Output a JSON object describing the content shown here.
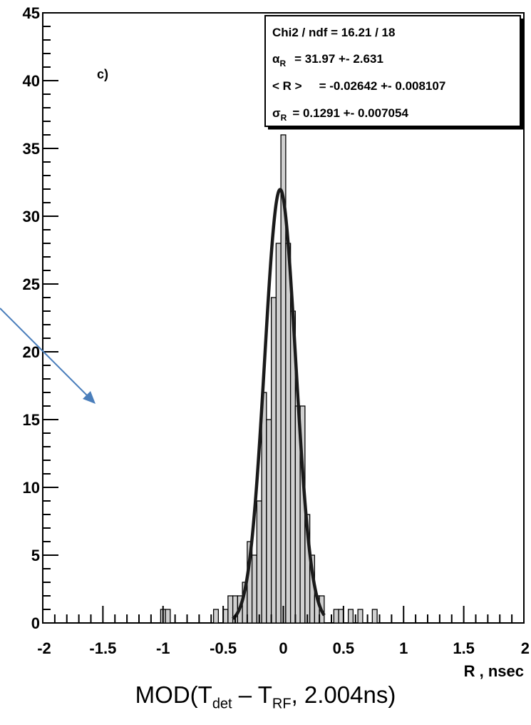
{
  "chart_data": {
    "type": "bar",
    "panel_label": "c)",
    "xlabel": "R , nsec",
    "x_ticks": [
      "-2",
      "-1.5",
      "-1",
      "-0.5",
      "0",
      "0.5",
      "1",
      "1.5",
      "2"
    ],
    "y_ticks": [
      "0",
      "5",
      "10",
      "15",
      "20",
      "25",
      "30",
      "35",
      "40",
      "45"
    ],
    "xlim": [
      -2,
      2
    ],
    "ylim": [
      0,
      45
    ],
    "bin_width": 0.04,
    "bins": [
      {
        "x": -1.0,
        "y": 1
      },
      {
        "x": -0.96,
        "y": 1
      },
      {
        "x": -0.56,
        "y": 1
      },
      {
        "x": -0.48,
        "y": 1
      },
      {
        "x": -0.44,
        "y": 2
      },
      {
        "x": -0.4,
        "y": 2
      },
      {
        "x": -0.36,
        "y": 2
      },
      {
        "x": -0.32,
        "y": 3
      },
      {
        "x": -0.28,
        "y": 6
      },
      {
        "x": -0.24,
        "y": 5
      },
      {
        "x": -0.2,
        "y": 9
      },
      {
        "x": -0.16,
        "y": 17
      },
      {
        "x": -0.12,
        "y": 15
      },
      {
        "x": -0.08,
        "y": 24
      },
      {
        "x": -0.04,
        "y": 28
      },
      {
        "x": 0.0,
        "y": 36
      },
      {
        "x": 0.04,
        "y": 28
      },
      {
        "x": 0.08,
        "y": 23
      },
      {
        "x": 0.12,
        "y": 16
      },
      {
        "x": 0.16,
        "y": 16
      },
      {
        "x": 0.2,
        "y": 8
      },
      {
        "x": 0.24,
        "y": 5
      },
      {
        "x": 0.28,
        "y": 2
      },
      {
        "x": 0.32,
        "y": 2
      },
      {
        "x": 0.44,
        "y": 1
      },
      {
        "x": 0.48,
        "y": 1
      },
      {
        "x": 0.56,
        "y": 1
      },
      {
        "x": 0.64,
        "y": 1
      },
      {
        "x": 0.76,
        "y": 1
      }
    ],
    "fit": {
      "amplitude": 31.97,
      "mean": -0.02642,
      "sigma": 0.1291,
      "x_range": [
        -0.42,
        0.34
      ]
    },
    "bar_fill": "#d0d0d0",
    "stats": {
      "line1": "Chi2 / ndf = 16.21 / 18",
      "line2_sym": "α",
      "line2_sub": "R",
      "line2_val": "= 31.97 +- 2.631",
      "line3_lbl": "< R >",
      "line3_val": "= -0.02642 +- 0.008107",
      "line4_sym": "σ",
      "line4_sub": "R",
      "line4_val": "= 0.1291 +- 0.007054"
    },
    "arrow_color": "#4a7ebb"
  },
  "caption": {
    "prefix": "MOD(T",
    "sub1": "det",
    "mid": " – T",
    "sub2": "RF",
    "suffix": ", 2.004ns)"
  }
}
